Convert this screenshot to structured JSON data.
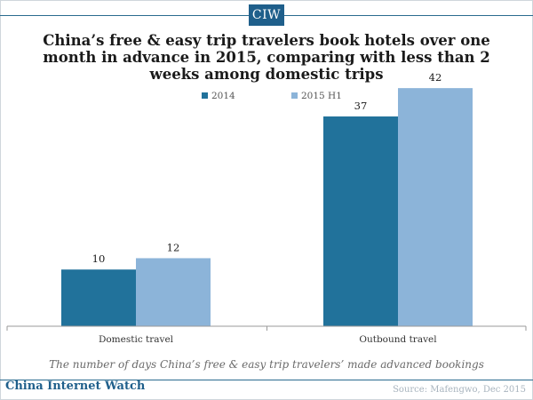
{
  "brand": {
    "badge": "CIW",
    "footer_name": "China Internet Watch",
    "accent": "#1f5f8b"
  },
  "source_note": "Source: Mafengwo, Dec 2015",
  "chart_data": {
    "type": "bar",
    "title": "China’s free & easy trip travelers book hotels over one month in advance in 2015, comparing with less than 2 weeks among domestic trips",
    "subtitle": "The number of days China’s free & easy trip travelers’ made advanced bookings",
    "xlabel": "",
    "ylabel": "",
    "categories": [
      "Domestic travel",
      "Outbound travel"
    ],
    "series": [
      {
        "name": "2014",
        "color": "#21729b",
        "values": [
          10,
          37
        ]
      },
      {
        "name": "2015 H1",
        "color": "#8cb4d9",
        "values": [
          12,
          42
        ]
      }
    ],
    "ylim": [
      0,
      45
    ],
    "grid": false,
    "legend": "top-center",
    "data_labels": true
  }
}
